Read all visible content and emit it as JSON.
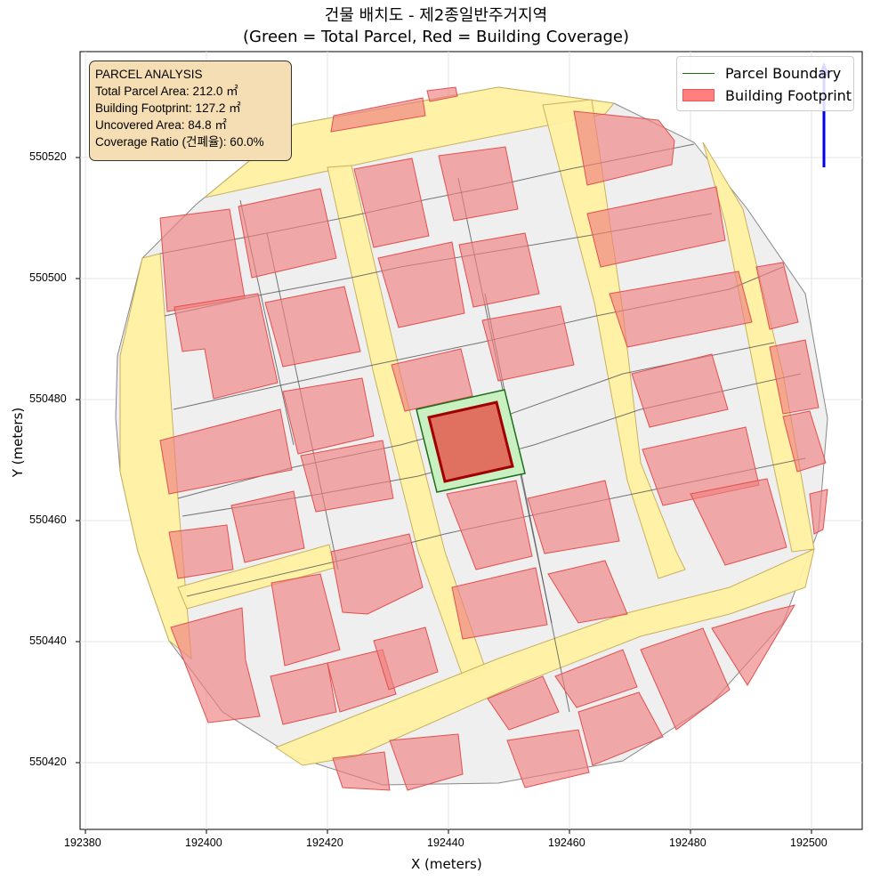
{
  "title": {
    "line1": "건물 배치도 - 제2종일반주거지역",
    "line2": "(Green = Total Parcel, Red = Building Coverage)"
  },
  "info_box": {
    "heading": "PARCEL ANALYSIS",
    "total_area": "Total Parcel Area: 212.0 ㎡",
    "footprint": "Building Footprint: 127.2 ㎡",
    "uncovered": "Uncovered Area: 84.8 ㎡",
    "coverage": "Coverage Ratio (건폐율): 60.0%"
  },
  "legend": {
    "parcel_boundary": "Parcel Boundary",
    "building_footprint": "Building Footprint"
  },
  "axes": {
    "xlabel": "X (meters)",
    "ylabel": "Y (meters)",
    "xticks": [
      "192380",
      "192400",
      "192420",
      "192440",
      "192460",
      "192480",
      "192500"
    ],
    "yticks": [
      "550520",
      "550500",
      "550480",
      "550460",
      "550440",
      "550420"
    ]
  },
  "colors": {
    "road": "#fff0a0",
    "block": "#efefef",
    "building": "#f08080",
    "building_overlap": "#ffa040",
    "parcel": "#c8f0c0",
    "parcel_edge": "#1a6e1a",
    "target_building": "#e07060",
    "target_edge": "#a00000",
    "north_arrow": "#0000ee"
  }
}
